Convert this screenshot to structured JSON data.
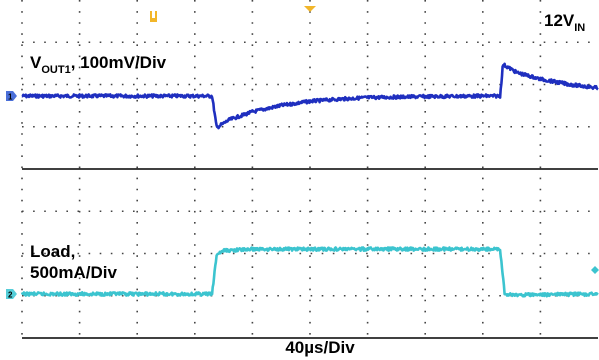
{
  "chart_data": {
    "type": "line",
    "title": "",
    "input_label": {
      "main": "12V",
      "sub": "IN"
    },
    "time_scale": "40µs/Div",
    "divisions": {
      "x": 10,
      "y": 8
    },
    "grid": true,
    "channels": [
      {
        "id": "1",
        "marker": "1",
        "label": {
          "main": "V",
          "sub": "OUT1",
          "rest": ", 100mV/Div"
        },
        "color": "#1f2fbf",
        "unit": "div",
        "x": [
          0,
          3.3,
          3.38,
          3.6,
          4.0,
          4.5,
          5.0,
          5.5,
          6.0,
          7.0,
          8.0,
          8.3,
          8.35,
          8.6,
          9.0,
          9.5,
          10.0
        ],
        "y": [
          0,
          0,
          -0.6,
          -0.45,
          -0.3,
          -0.18,
          -0.1,
          -0.06,
          -0.03,
          -0.01,
          0,
          0,
          0.6,
          0.44,
          0.32,
          0.22,
          0.15
        ]
      },
      {
        "id": "2",
        "marker": "2",
        "label": {
          "line1": "Load,",
          "line2": "500mA/Div"
        },
        "color": "#3cc4cf",
        "unit": "div",
        "x": [
          0,
          3.3,
          3.38,
          3.5,
          4.0,
          8.3,
          8.38,
          8.5,
          10.0
        ],
        "y": [
          0,
          0,
          0.75,
          0.82,
          0.85,
          0.85,
          0,
          -0.02,
          0
        ]
      }
    ],
    "trigger_markers": [
      "position",
      "trigger"
    ]
  }
}
